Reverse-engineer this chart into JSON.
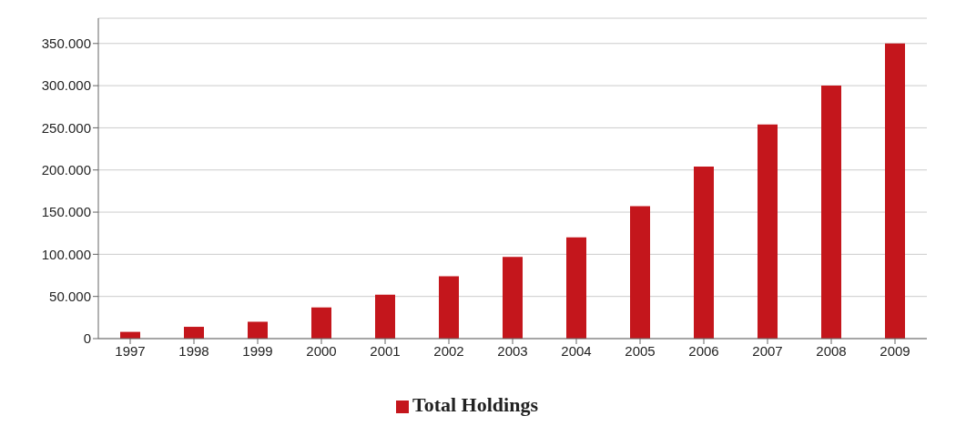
{
  "chart_data": {
    "type": "bar",
    "categories": [
      "1997",
      "1998",
      "1999",
      "2000",
      "2001",
      "2002",
      "2003",
      "2004",
      "2005",
      "2006",
      "2007",
      "2008",
      "2009"
    ],
    "series": [
      {
        "name": "Total Holdings",
        "color": "#c4161c",
        "values": [
          8000,
          14000,
          20000,
          37000,
          52000,
          74000,
          97000,
          120000,
          157000,
          204000,
          254000,
          300000,
          350000
        ]
      }
    ],
    "ylim": [
      0,
      380000
    ],
    "yticks": [
      {
        "value": 0,
        "label": "0"
      },
      {
        "value": 50000,
        "label": "50.000"
      },
      {
        "value": 100000,
        "label": "100.000"
      },
      {
        "value": 150000,
        "label": "150.000"
      },
      {
        "value": 200000,
        "label": "200.000"
      },
      {
        "value": 250000,
        "label": "250.000"
      },
      {
        "value": 300000,
        "label": "300.000"
      },
      {
        "value": 350000,
        "label": "350.000"
      }
    ],
    "grid": "y",
    "legend": "bottom"
  }
}
